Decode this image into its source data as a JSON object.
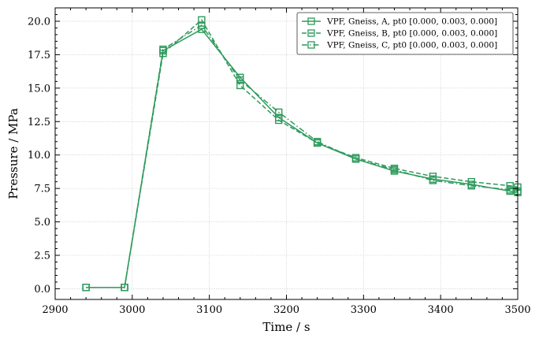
{
  "chart_data": {
    "type": "line",
    "xlabel": "Time / s",
    "ylabel": "Pressure / MPa",
    "xlim": [
      2900,
      3500
    ],
    "ylim": [
      -0.8,
      21
    ],
    "xticks": [
      2900,
      3000,
      3100,
      3200,
      3300,
      3400,
      3500
    ],
    "yticks": [
      0.0,
      2.5,
      5.0,
      7.5,
      10.0,
      12.5,
      15.0,
      17.5,
      20.0
    ],
    "xtick_labels": [
      "2900",
      "3000",
      "3100",
      "3200",
      "3300",
      "3400",
      "3500"
    ],
    "ytick_labels": [
      "0.0",
      "2.5",
      "5.0",
      "7.5",
      "10.0",
      "12.5",
      "15.0",
      "17.5",
      "20.0"
    ],
    "grid": true,
    "legend_position": "top-right",
    "color": "#2e9a5c",
    "marker": "open-square",
    "series": [
      {
        "name": "VPF, Gneiss, A, pt0 [0.000, 0.003, 0.000]",
        "linestyle": "solid",
        "x": [
          2940,
          2990,
          3040,
          3090,
          3140,
          3190,
          3240,
          3290,
          3340,
          3390,
          3440,
          3490,
          3500
        ],
        "y": [
          0.1,
          0.1,
          17.8,
          19.4,
          15.8,
          12.8,
          10.9,
          9.7,
          8.8,
          8.2,
          7.8,
          7.3,
          7.2
        ]
      },
      {
        "name": "VPF, Gneiss, B, pt0 [0.000, 0.003, 0.000]",
        "linestyle": "dashed",
        "x": [
          2940,
          2990,
          3040,
          3090,
          3140,
          3190,
          3240,
          3290,
          3340,
          3390,
          3440,
          3490,
          3500
        ],
        "y": [
          0.1,
          0.1,
          17.6,
          20.1,
          15.2,
          12.6,
          10.9,
          9.8,
          9.0,
          8.4,
          8.0,
          7.7,
          7.6
        ]
      },
      {
        "name": "VPF, Gneiss, C, pt0 [0.000, 0.003, 0.000]",
        "linestyle": "dashdot",
        "x": [
          2940,
          2990,
          3040,
          3090,
          3140,
          3190,
          3240,
          3290,
          3340,
          3390,
          3440,
          3490,
          3500
        ],
        "y": [
          0.1,
          0.1,
          17.9,
          19.7,
          15.6,
          13.2,
          11.0,
          9.7,
          8.9,
          8.1,
          7.7,
          7.4,
          7.3
        ]
      }
    ]
  }
}
